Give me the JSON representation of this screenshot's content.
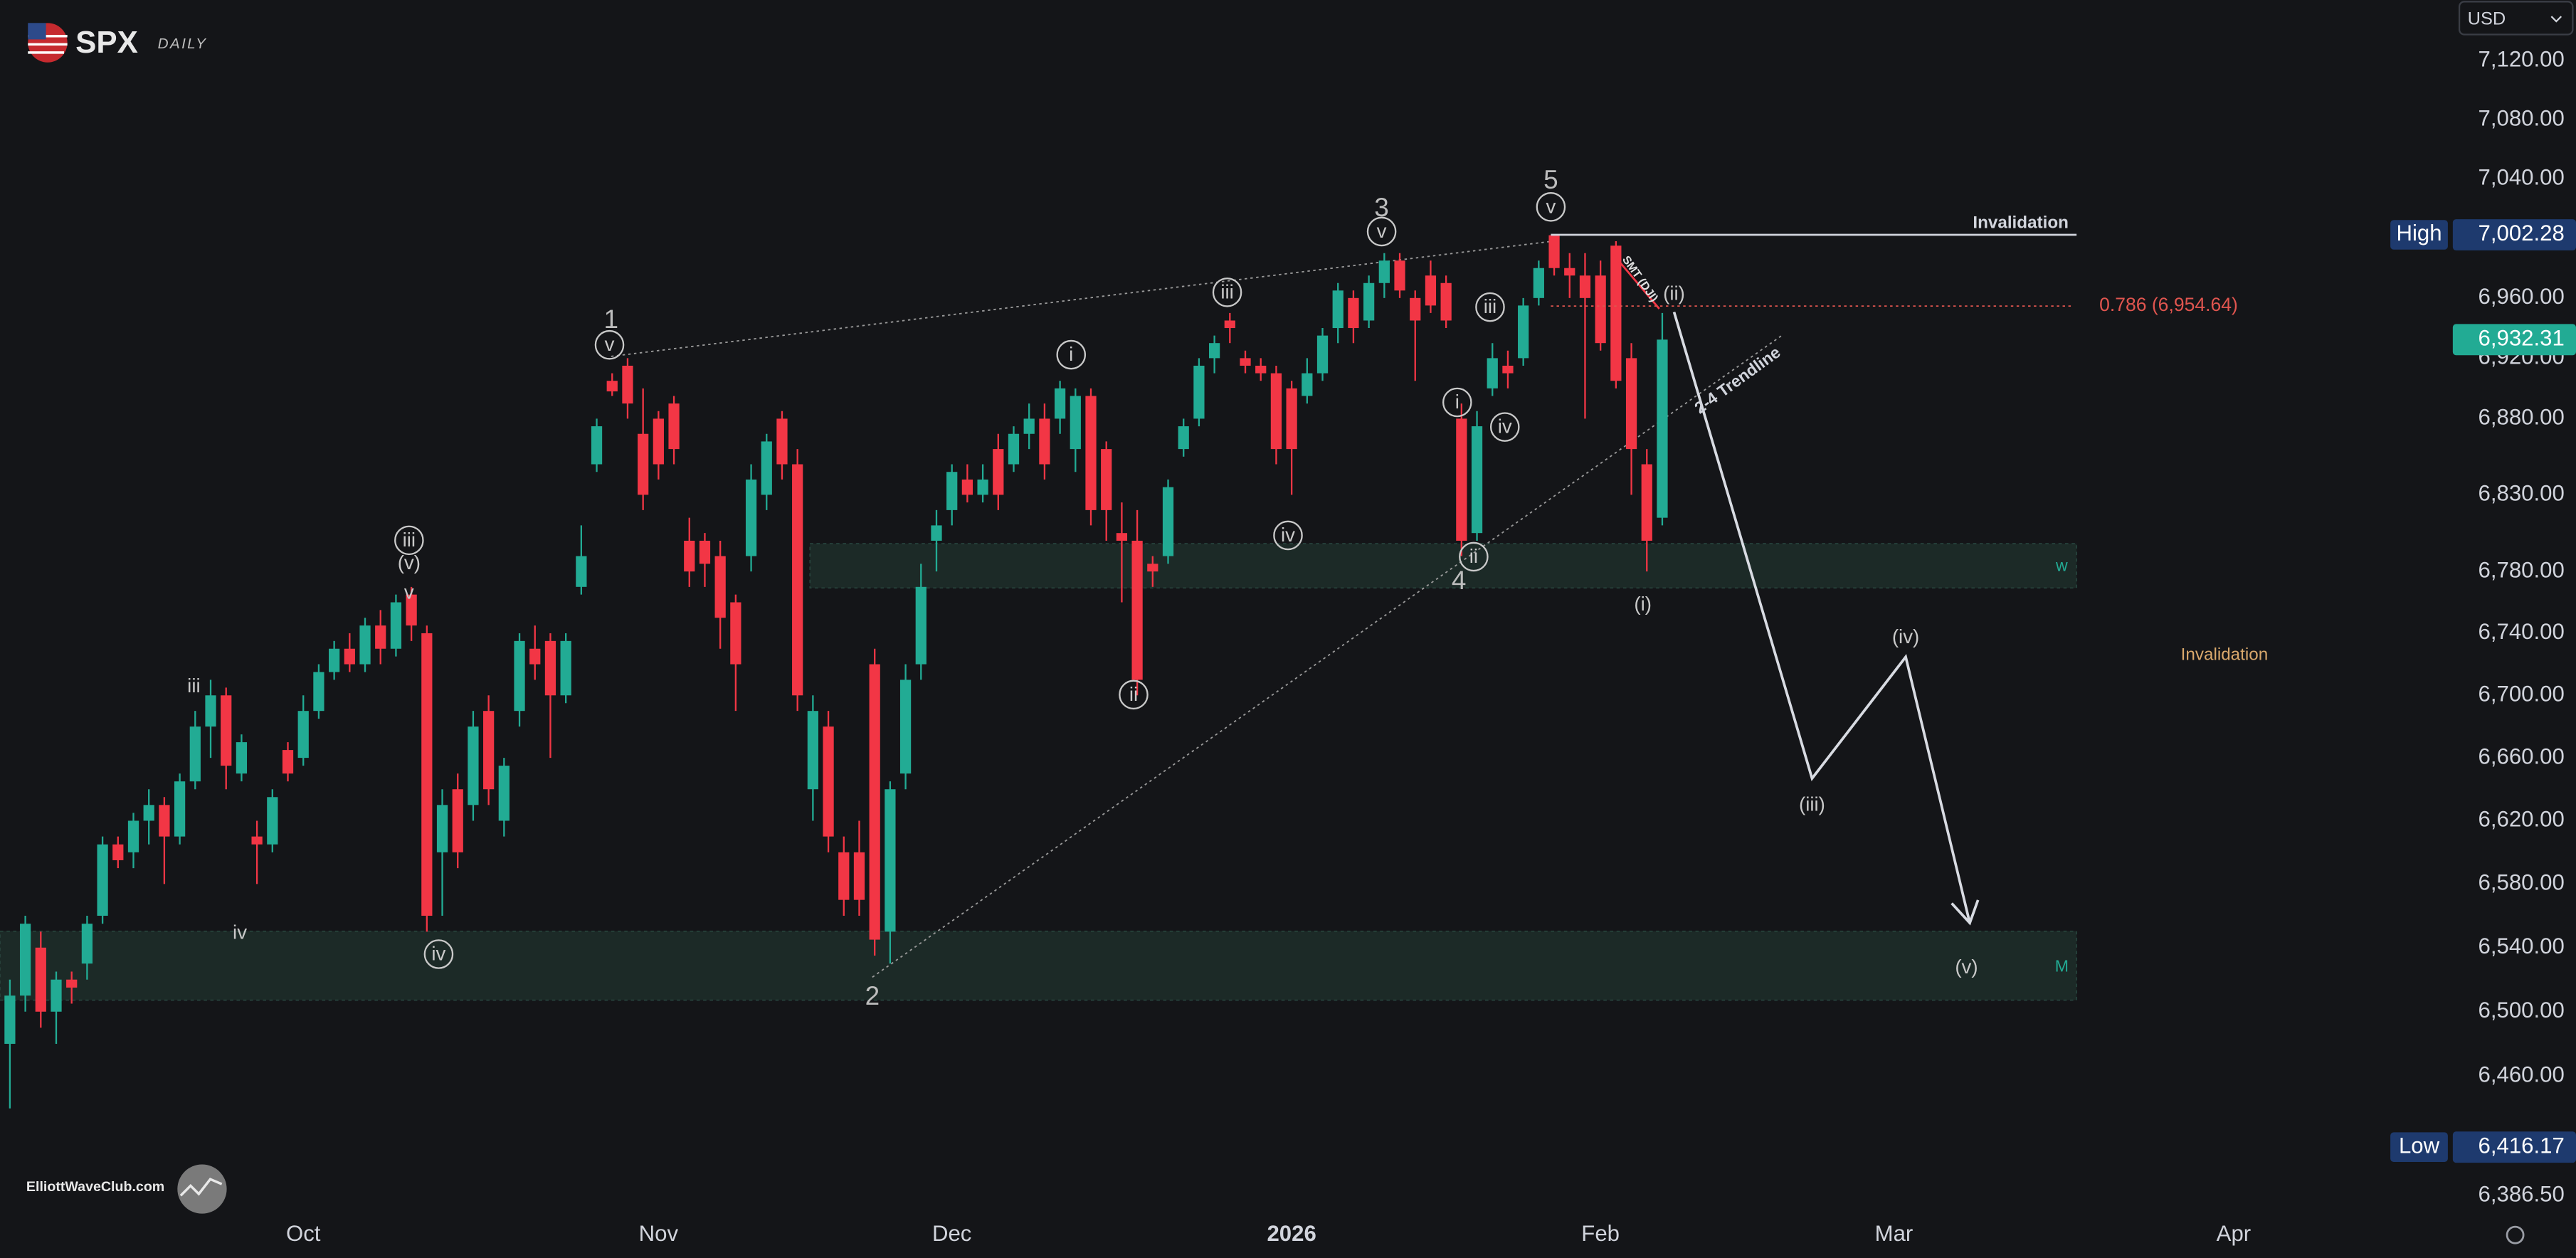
{
  "header": {
    "symbol": "SPX",
    "interval": "DAILY"
  },
  "currency": "USD",
  "footer": "ElliottWaveClub.com",
  "chart_data": {
    "type": "candlestick",
    "log_scale": true,
    "grid": false,
    "up_color": "#22ab94",
    "down_color": "#f23645",
    "xlim": [
      -0.64,
      157.87
    ],
    "xticks": [
      {
        "value": 19,
        "label": "Oct"
      },
      {
        "value": 42,
        "label": "Nov"
      },
      {
        "value": 61,
        "label": "Dec"
      },
      {
        "value": 83,
        "label": "2026"
      },
      {
        "value": 103,
        "label": "Feb"
      },
      {
        "value": 122,
        "label": "Mar"
      },
      {
        "value": 144,
        "label": "Apr"
      }
    ],
    "ylim": [
      6374.4,
      7161.6
    ],
    "yticks": [
      {
        "value": 7120,
        "label": "7,120.00"
      },
      {
        "value": 7080,
        "label": "7,080.00"
      },
      {
        "value": 7040,
        "label": "7,040.00"
      },
      {
        "value": 6960,
        "label": "6,960.00"
      },
      {
        "value": 6920,
        "label": "6,920.00"
      },
      {
        "value": 6880,
        "label": "6,880.00"
      },
      {
        "value": 6830,
        "label": "6,830.00"
      },
      {
        "value": 6780,
        "label": "6,780.00"
      },
      {
        "value": 6740,
        "label": "6,740.00"
      },
      {
        "value": 6700,
        "label": "6,700.00"
      },
      {
        "value": 6660,
        "label": "6,660.00"
      },
      {
        "value": 6620,
        "label": "6,620.00"
      },
      {
        "value": 6580,
        "label": "6,580.00"
      },
      {
        "value": 6540,
        "label": "6,540.00"
      },
      {
        "value": 6500,
        "label": "6,500.00"
      },
      {
        "value": 6460,
        "label": "6,460.00"
      },
      {
        "value": 6386.5,
        "label": "6,386.50"
      }
    ],
    "candles": [
      {
        "open": 6480,
        "high": 6520,
        "low": 6440,
        "close": 6510
      },
      {
        "open": 6510,
        "high": 6560,
        "low": 6500,
        "close": 6555
      },
      {
        "open": 6540,
        "high": 6550,
        "low": 6490,
        "close": 6500
      },
      {
        "open": 6500,
        "high": 6525,
        "low": 6480,
        "close": 6520
      },
      {
        "open": 6520,
        "high": 6525,
        "low": 6505,
        "close": 6515
      },
      {
        "open": 6530,
        "high": 6560,
        "low": 6520,
        "close": 6555
      },
      {
        "open": 6560,
        "high": 6610,
        "low": 6555,
        "close": 6605
      },
      {
        "open": 6605,
        "high": 6610,
        "low": 6590,
        "close": 6595
      },
      {
        "open": 6600,
        "high": 6625,
        "low": 6590,
        "close": 6620
      },
      {
        "open": 6620,
        "high": 6640,
        "low": 6605,
        "close": 6630
      },
      {
        "open": 6630,
        "high": 6635,
        "low": 6580,
        "close": 6610
      },
      {
        "open": 6610,
        "high": 6650,
        "low": 6605,
        "close": 6645
      },
      {
        "open": 6645,
        "high": 6690,
        "low": 6640,
        "close": 6680
      },
      {
        "open": 6680,
        "high": 6710,
        "low": 6660,
        "close": 6700
      },
      {
        "open": 6700,
        "high": 6705,
        "low": 6640,
        "close": 6655
      },
      {
        "open": 6650,
        "high": 6675,
        "low": 6645,
        "close": 6670
      },
      {
        "open": 6610,
        "high": 6620,
        "low": 6580,
        "close": 6605
      },
      {
        "open": 6605,
        "high": 6640,
        "low": 6600,
        "close": 6635
      },
      {
        "open": 6665,
        "high": 6670,
        "low": 6645,
        "close": 6650
      },
      {
        "open": 6660,
        "high": 6700,
        "low": 6655,
        "close": 6690
      },
      {
        "open": 6690,
        "high": 6720,
        "low": 6685,
        "close": 6715
      },
      {
        "open": 6715,
        "high": 6735,
        "low": 6710,
        "close": 6730
      },
      {
        "open": 6730,
        "high": 6740,
        "low": 6715,
        "close": 6720
      },
      {
        "open": 6720,
        "high": 6750,
        "low": 6715,
        "close": 6745
      },
      {
        "open": 6745,
        "high": 6755,
        "low": 6720,
        "close": 6730
      },
      {
        "open": 6730,
        "high": 6765,
        "low": 6725,
        "close": 6760
      },
      {
        "open": 6765,
        "high": 6770,
        "low": 6735,
        "close": 6745
      },
      {
        "open": 6740,
        "high": 6745,
        "low": 6550,
        "close": 6560
      },
      {
        "open": 6600,
        "high": 6640,
        "low": 6560,
        "close": 6630
      },
      {
        "open": 6640,
        "high": 6650,
        "low": 6590,
        "close": 6600
      },
      {
        "open": 6630,
        "high": 6690,
        "low": 6620,
        "close": 6680
      },
      {
        "open": 6690,
        "high": 6700,
        "low": 6630,
        "close": 6640
      },
      {
        "open": 6620,
        "high": 6660,
        "low": 6610,
        "close": 6655
      },
      {
        "open": 6690,
        "high": 6740,
        "low": 6680,
        "close": 6735
      },
      {
        "open": 6730,
        "high": 6745,
        "low": 6710,
        "close": 6720
      },
      {
        "open": 6735,
        "high": 6740,
        "low": 6660,
        "close": 6700
      },
      {
        "open": 6700,
        "high": 6740,
        "low": 6695,
        "close": 6735
      },
      {
        "open": 6770,
        "high": 6810,
        "low": 6765,
        "close": 6790
      },
      {
        "open": 6850,
        "high": 6880,
        "low": 6845,
        "close": 6875
      },
      {
        "open": 6905,
        "high": 6910,
        "low": 6895,
        "close": 6898
      },
      {
        "open": 6915,
        "high": 6920,
        "low": 6880,
        "close": 6890
      },
      {
        "open": 6870,
        "high": 6900,
        "low": 6820,
        "close": 6830
      },
      {
        "open": 6880,
        "high": 6885,
        "low": 6840,
        "close": 6850
      },
      {
        "open": 6890,
        "high": 6895,
        "low": 6850,
        "close": 6860
      },
      {
        "open": 6800,
        "high": 6815,
        "low": 6770,
        "close": 6780
      },
      {
        "open": 6800,
        "high": 6805,
        "low": 6770,
        "close": 6785
      },
      {
        "open": 6790,
        "high": 6800,
        "low": 6730,
        "close": 6750
      },
      {
        "open": 6760,
        "high": 6765,
        "low": 6690,
        "close": 6720
      },
      {
        "open": 6790,
        "high": 6850,
        "low": 6780,
        "close": 6840
      },
      {
        "open": 6830,
        "high": 6870,
        "low": 6820,
        "close": 6865
      },
      {
        "open": 6880,
        "high": 6885,
        "low": 6840,
        "close": 6850
      },
      {
        "open": 6850,
        "high": 6860,
        "low": 6690,
        "close": 6700
      },
      {
        "open": 6640,
        "high": 6700,
        "low": 6620,
        "close": 6690
      },
      {
        "open": 6680,
        "high": 6690,
        "low": 6600,
        "close": 6610
      },
      {
        "open": 6600,
        "high": 6610,
        "low": 6560,
        "close": 6570
      },
      {
        "open": 6600,
        "high": 6620,
        "low": 6560,
        "close": 6570
      },
      {
        "open": 6720,
        "high": 6730,
        "low": 6535,
        "close": 6545
      },
      {
        "open": 6550,
        "high": 6645,
        "low": 6530,
        "close": 6640
      },
      {
        "open": 6650,
        "high": 6720,
        "low": 6640,
        "close": 6710
      },
      {
        "open": 6720,
        "high": 6785,
        "low": 6710,
        "close": 6770
      },
      {
        "open": 6800,
        "high": 6820,
        "low": 6780,
        "close": 6810
      },
      {
        "open": 6820,
        "high": 6850,
        "low": 6810,
        "close": 6845
      },
      {
        "open": 6840,
        "high": 6850,
        "low": 6825,
        "close": 6830
      },
      {
        "open": 6830,
        "high": 6850,
        "low": 6825,
        "close": 6840
      },
      {
        "open": 6860,
        "high": 6870,
        "low": 6820,
        "close": 6830
      },
      {
        "open": 6850,
        "high": 6875,
        "low": 6845,
        "close": 6870
      },
      {
        "open": 6870,
        "high": 6890,
        "low": 6860,
        "close": 6880
      },
      {
        "open": 6880,
        "high": 6890,
        "low": 6840,
        "close": 6850
      },
      {
        "open": 6880,
        "high": 6905,
        "low": 6870,
        "close": 6900
      },
      {
        "open": 6860,
        "high": 6900,
        "low": 6845,
        "close": 6895
      },
      {
        "open": 6895,
        "high": 6900,
        "low": 6810,
        "close": 6820
      },
      {
        "open": 6860,
        "high": 6865,
        "low": 6800,
        "close": 6820
      },
      {
        "open": 6805,
        "high": 6825,
        "low": 6760,
        "close": 6800
      },
      {
        "open": 6800,
        "high": 6820,
        "low": 6700,
        "close": 6710
      },
      {
        "open": 6785,
        "high": 6790,
        "low": 6770,
        "close": 6780
      },
      {
        "open": 6790,
        "high": 6840,
        "low": 6785,
        "close": 6835
      },
      {
        "open": 6860,
        "high": 6880,
        "low": 6855,
        "close": 6875
      },
      {
        "open": 6880,
        "high": 6920,
        "low": 6875,
        "close": 6915
      },
      {
        "open": 6920,
        "high": 6935,
        "low": 6910,
        "close": 6930
      },
      {
        "open": 6945,
        "high": 6950,
        "low": 6930,
        "close": 6940
      },
      {
        "open": 6920,
        "high": 6925,
        "low": 6910,
        "close": 6915
      },
      {
        "open": 6915,
        "high": 6920,
        "low": 6905,
        "close": 6910
      },
      {
        "open": 6910,
        "high": 6915,
        "low": 6850,
        "close": 6860
      },
      {
        "open": 6900,
        "high": 6905,
        "low": 6830,
        "close": 6860
      },
      {
        "open": 6895,
        "high": 6920,
        "low": 6890,
        "close": 6910
      },
      {
        "open": 6910,
        "high": 6940,
        "low": 6905,
        "close": 6935
      },
      {
        "open": 6940,
        "high": 6970,
        "low": 6930,
        "close": 6965
      },
      {
        "open": 6960,
        "high": 6965,
        "low": 6930,
        "close": 6940
      },
      {
        "open": 6945,
        "high": 6975,
        "low": 6940,
        "close": 6970
      },
      {
        "open": 6970,
        "high": 6990,
        "low": 6960,
        "close": 6985
      },
      {
        "open": 6985,
        "high": 6990,
        "low": 6960,
        "close": 6965
      },
      {
        "open": 6960,
        "high": 6965,
        "low": 6905,
        "close": 6945
      },
      {
        "open": 6975,
        "high": 6985,
        "low": 6950,
        "close": 6955
      },
      {
        "open": 6970,
        "high": 6975,
        "low": 6940,
        "close": 6945
      },
      {
        "open": 6880,
        "high": 6890,
        "low": 6790,
        "close": 6800
      },
      {
        "open": 6805,
        "high": 6885,
        "low": 6800,
        "close": 6875
      },
      {
        "open": 6900,
        "high": 6930,
        "low": 6895,
        "close": 6920
      },
      {
        "open": 6915,
        "high": 6925,
        "low": 6900,
        "close": 6910
      },
      {
        "open": 6920,
        "high": 6960,
        "low": 6915,
        "close": 6955
      },
      {
        "open": 6960,
        "high": 6985,
        "low": 6955,
        "close": 6980
      },
      {
        "open": 7002,
        "high": 7002.28,
        "low": 6975,
        "close": 6980
      },
      {
        "open": 6980,
        "high": 6990,
        "low": 6960,
        "close": 6975
      },
      {
        "open": 6975,
        "high": 6990,
        "low": 6880,
        "close": 6960
      },
      {
        "open": 6975,
        "high": 6985,
        "low": 6925,
        "close": 6930
      },
      {
        "open": 6995,
        "high": 6998,
        "low": 6900,
        "close": 6905
      },
      {
        "open": 6920,
        "high": 6930,
        "low": 6830,
        "close": 6860
      },
      {
        "open": 6850,
        "high": 6860,
        "low": 6780,
        "close": 6800
      },
      {
        "open": 6815,
        "high": 6950,
        "low": 6810,
        "close": 6932.31
      }
    ],
    "high_marker": {
      "name": "High",
      "value": 7002.28,
      "label": "7,002.28"
    },
    "low_marker": {
      "name": "Low",
      "value": 6416.17,
      "label": "6,416.17"
    },
    "last_price": {
      "value": 6932.31,
      "label": "6,932.31"
    },
    "fib": {
      "value": 6954.64,
      "label": "0.786 (6,954.64)"
    },
    "invalidation_labels": [
      "Invalidation",
      "Invalidation"
    ],
    "trendline_labels": [
      "SMT (DJI)",
      "2-4 Trendline"
    ],
    "zone_labels": [
      "w",
      "M"
    ],
    "wave_labels": [
      {
        "text": "1",
        "circled": false
      },
      {
        "text": "v",
        "circled": true
      },
      {
        "text": "iii",
        "circled": true
      },
      {
        "text": "(v)",
        "circled": false
      },
      {
        "text": "v",
        "circled": false
      },
      {
        "text": "iii",
        "circled": false
      },
      {
        "text": "iv",
        "circled": false
      },
      {
        "text": "iv",
        "circled": true
      },
      {
        "text": "2",
        "circled": false
      },
      {
        "text": "i",
        "circled": true
      },
      {
        "text": "ii",
        "circled": true
      },
      {
        "text": "iii",
        "circled": true
      },
      {
        "text": "iv",
        "circled": true
      },
      {
        "text": "3",
        "circled": false
      },
      {
        "text": "v",
        "circled": true
      },
      {
        "text": "iii",
        "circled": true
      },
      {
        "text": "i",
        "circled": true
      },
      {
        "text": "iv",
        "circled": true
      },
      {
        "text": "ii",
        "circled": true
      },
      {
        "text": "4",
        "circled": false
      },
      {
        "text": "5",
        "circled": false
      },
      {
        "text": "v",
        "circled": true
      },
      {
        "text": "(ii)",
        "circled": false
      },
      {
        "text": "(i)",
        "circled": false
      },
      {
        "text": "(iii)",
        "circled": false
      },
      {
        "text": "(iv)",
        "circled": false
      },
      {
        "text": "(v)",
        "circled": false
      }
    ]
  }
}
